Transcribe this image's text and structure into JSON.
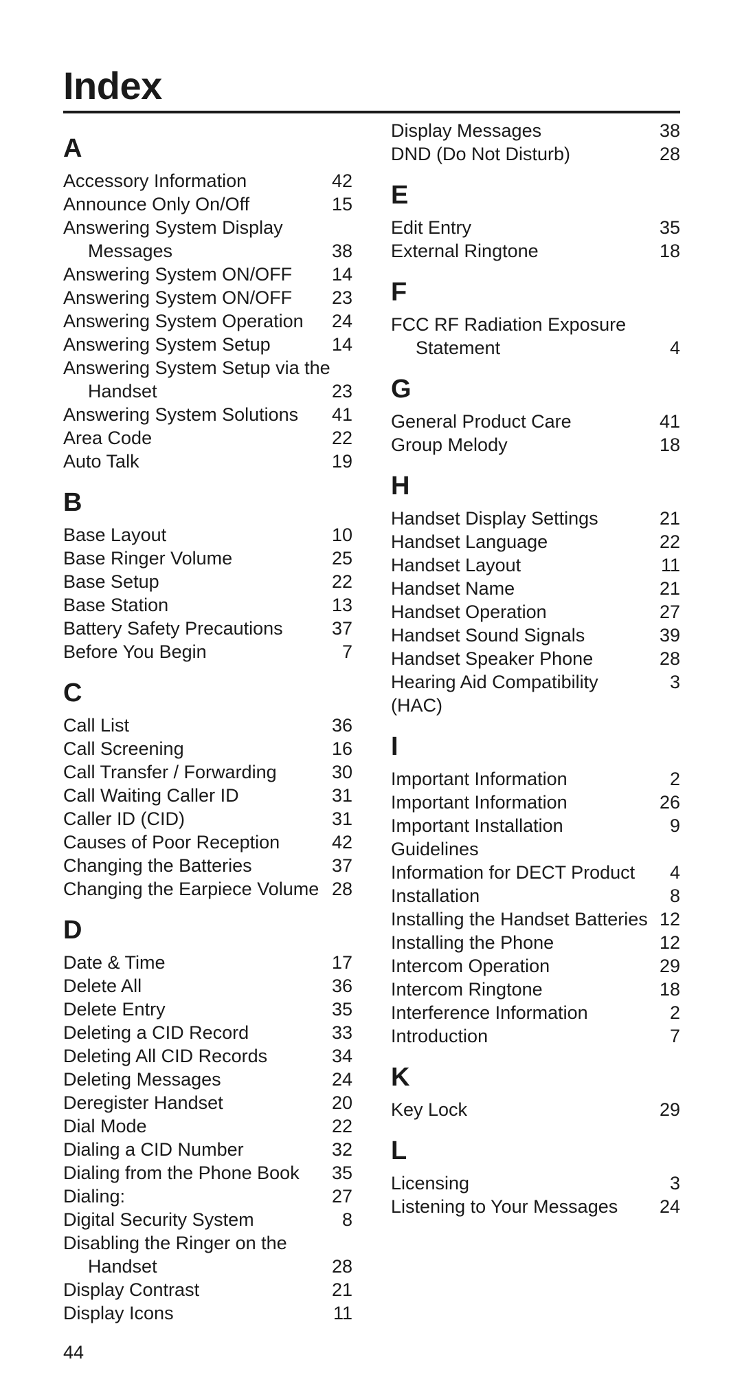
{
  "page_title": "Index",
  "page_number": "44",
  "font_family": "Century Gothic",
  "colors": {
    "text": "#1a1a1a",
    "background": "#ffffff",
    "rule": "#1a1a1a"
  },
  "sections": [
    {
      "letter": "A",
      "entries": [
        {
          "term": "Accessory Information",
          "page": "42"
        },
        {
          "term": "Announce Only On/Off",
          "page": "15"
        },
        {
          "term": "Answering System Display",
          "page": "",
          "no_page": true
        },
        {
          "term": "Messages",
          "page": "38",
          "indent": true
        },
        {
          "term": "Answering System ON/OFF",
          "page": "14"
        },
        {
          "term": "Answering System ON/OFF",
          "page": "23"
        },
        {
          "term": "Answering System Operation",
          "page": "24"
        },
        {
          "term": "Answering System Setup",
          "page": "14"
        },
        {
          "term": "Answering System Setup via the",
          "page": "",
          "no_page": true
        },
        {
          "term": "Handset",
          "page": "23",
          "indent": true
        },
        {
          "term": "Answering System Solutions",
          "page": "41"
        },
        {
          "term": "Area Code",
          "page": "22"
        },
        {
          "term": "Auto Talk",
          "page": "19"
        }
      ]
    },
    {
      "letter": "B",
      "entries": [
        {
          "term": "Base Layout",
          "page": "10"
        },
        {
          "term": "Base Ringer Volume",
          "page": "25"
        },
        {
          "term": "Base Setup",
          "page": "22"
        },
        {
          "term": "Base Station",
          "page": "13"
        },
        {
          "term": "Battery Safety Precautions",
          "page": "37"
        },
        {
          "term": "Before You Begin",
          "page": "7"
        }
      ]
    },
    {
      "letter": "C",
      "entries": [
        {
          "term": "Call List",
          "page": "36"
        },
        {
          "term": "Call Screening",
          "page": "16"
        },
        {
          "term": "Call Transfer / Forwarding",
          "page": "30"
        },
        {
          "term": "Call Waiting Caller ID",
          "page": "31"
        },
        {
          "term": "Caller ID (CID)",
          "page": "31"
        },
        {
          "term": "Causes of Poor Reception",
          "page": "42"
        },
        {
          "term": "Changing the Batteries",
          "page": "37"
        },
        {
          "term": "Changing the Earpiece Volume",
          "page": "28"
        }
      ]
    },
    {
      "letter": "D",
      "entries": [
        {
          "term": "Date & Time",
          "page": "17"
        },
        {
          "term": "Delete All",
          "page": "36"
        },
        {
          "term": "Delete Entry",
          "page": "35"
        },
        {
          "term": "Deleting a CID Record",
          "page": "33"
        },
        {
          "term": "Deleting All CID Records",
          "page": "34"
        },
        {
          "term": "Deleting Messages",
          "page": "24"
        },
        {
          "term": "Deregister Handset",
          "page": "20"
        },
        {
          "term": "Dial Mode",
          "page": "22"
        },
        {
          "term": "Dialing a CID Number",
          "page": "32"
        },
        {
          "term": "Dialing from the Phone Book",
          "page": "35"
        },
        {
          "term": "Dialing:",
          "page": "27"
        },
        {
          "term": "Digital Security System",
          "page": "8"
        },
        {
          "term": "Disabling the Ringer on the",
          "page": "",
          "no_page": true
        },
        {
          "term": "Handset",
          "page": "28",
          "indent": true
        },
        {
          "term": "Display Contrast",
          "page": "21"
        },
        {
          "term": "Display Icons",
          "page": "11"
        },
        {
          "term": "Display Messages",
          "page": "38"
        },
        {
          "term": "DND (Do Not Disturb)",
          "page": "28"
        }
      ]
    },
    {
      "letter": "E",
      "entries": [
        {
          "term": "Edit Entry",
          "page": "35"
        },
        {
          "term": "External Ringtone",
          "page": "18"
        }
      ]
    },
    {
      "letter": "F",
      "entries": [
        {
          "term": "FCC RF Radiation Exposure",
          "page": "",
          "no_page": true
        },
        {
          "term": "Statement",
          "page": "4",
          "indent": true
        }
      ]
    },
    {
      "letter": "G",
      "entries": [
        {
          "term": "General Product Care",
          "page": "41"
        },
        {
          "term": "Group Melody",
          "page": "18"
        }
      ]
    },
    {
      "letter": "H",
      "entries": [
        {
          "term": "Handset Display Settings",
          "page": "21"
        },
        {
          "term": "Handset Language",
          "page": "22"
        },
        {
          "term": "Handset Layout",
          "page": "11"
        },
        {
          "term": "Handset Name",
          "page": "21"
        },
        {
          "term": "Handset Operation",
          "page": "27"
        },
        {
          "term": "Handset Sound Signals",
          "page": "39"
        },
        {
          "term": "Handset Speaker Phone",
          "page": "28"
        },
        {
          "term": "Hearing Aid Compatibility (HAC)",
          "page": "3"
        }
      ]
    },
    {
      "letter": "I",
      "entries": [
        {
          "term": "Important Information",
          "page": "2"
        },
        {
          "term": "Important Information",
          "page": "26"
        },
        {
          "term": "Important Installation Guidelines",
          "page": "9"
        },
        {
          "term": "Information for DECT Product",
          "page": "4"
        },
        {
          "term": "Installation",
          "page": "8"
        },
        {
          "term": "Installing the Handset Batteries",
          "page": "12"
        },
        {
          "term": "Installing the Phone",
          "page": "12"
        },
        {
          "term": "Intercom Operation",
          "page": "29"
        },
        {
          "term": "Intercom Ringtone",
          "page": "18"
        },
        {
          "term": "Interference Information",
          "page": "2"
        },
        {
          "term": "Introduction",
          "page": "7"
        }
      ]
    },
    {
      "letter": "K",
      "entries": [
        {
          "term": "Key Lock",
          "page": "29"
        }
      ]
    },
    {
      "letter": "L",
      "entries": [
        {
          "term": "Licensing",
          "page": "3"
        },
        {
          "term": "Listening to Your Messages",
          "page": "24"
        }
      ]
    }
  ]
}
